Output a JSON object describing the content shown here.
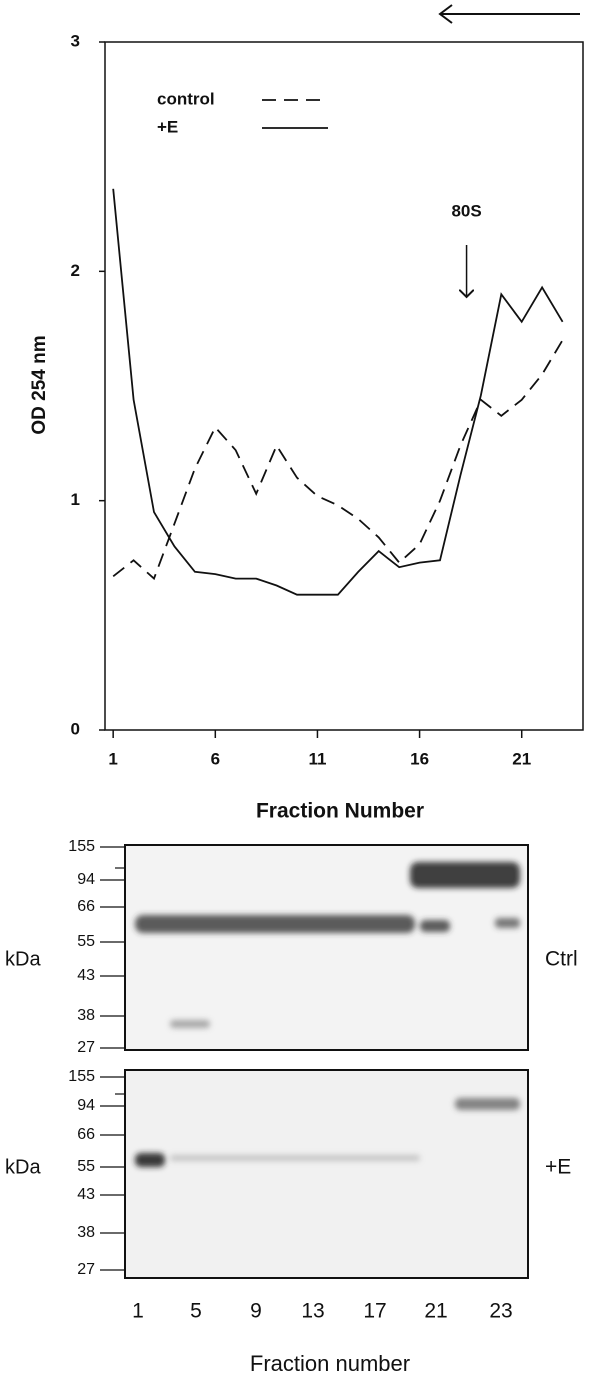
{
  "chart_data": {
    "type": "line",
    "y_label": "OD 254 nm",
    "x_label": "Fraction Number",
    "annotation": "80S",
    "annotation_x": 18.3,
    "x": [
      1,
      2,
      3,
      4,
      5,
      6,
      7,
      8,
      9,
      10,
      11,
      12,
      13,
      14,
      15,
      16,
      17,
      18,
      19,
      20,
      21,
      22,
      23
    ],
    "series": [
      {
        "name": "control",
        "color": "#111111",
        "dashed": true,
        "values": [
          0.67,
          0.74,
          0.66,
          0.9,
          1.14,
          1.32,
          1.22,
          1.03,
          1.24,
          1.1,
          1.02,
          0.98,
          0.92,
          0.84,
          0.73,
          0.81,
          1.0,
          1.24,
          1.44,
          1.37,
          1.44,
          1.55,
          1.7
        ]
      },
      {
        "name": "+E",
        "color": "#111111",
        "dashed": false,
        "values": [
          2.36,
          1.44,
          0.95,
          0.8,
          0.69,
          0.68,
          0.66,
          0.66,
          0.63,
          0.59,
          0.59,
          0.59,
          0.69,
          0.78,
          0.71,
          0.73,
          0.74,
          1.11,
          1.46,
          1.9,
          1.78,
          1.93,
          1.78
        ]
      }
    ],
    "xlim": [
      0.6,
      24
    ],
    "xticks": [
      1,
      6,
      11,
      16,
      21
    ],
    "ylim": [
      0,
      3
    ],
    "yticks": [
      0,
      1,
      2,
      3
    ]
  },
  "blots": {
    "unit": "kDa",
    "markers": [
      155,
      94,
      66,
      55,
      43,
      38,
      27
    ],
    "panels": [
      "Ctrl",
      "+E"
    ],
    "lanes": [
      1,
      5,
      9,
      13,
      17,
      21,
      23
    ],
    "x_label": "Fraction number"
  }
}
